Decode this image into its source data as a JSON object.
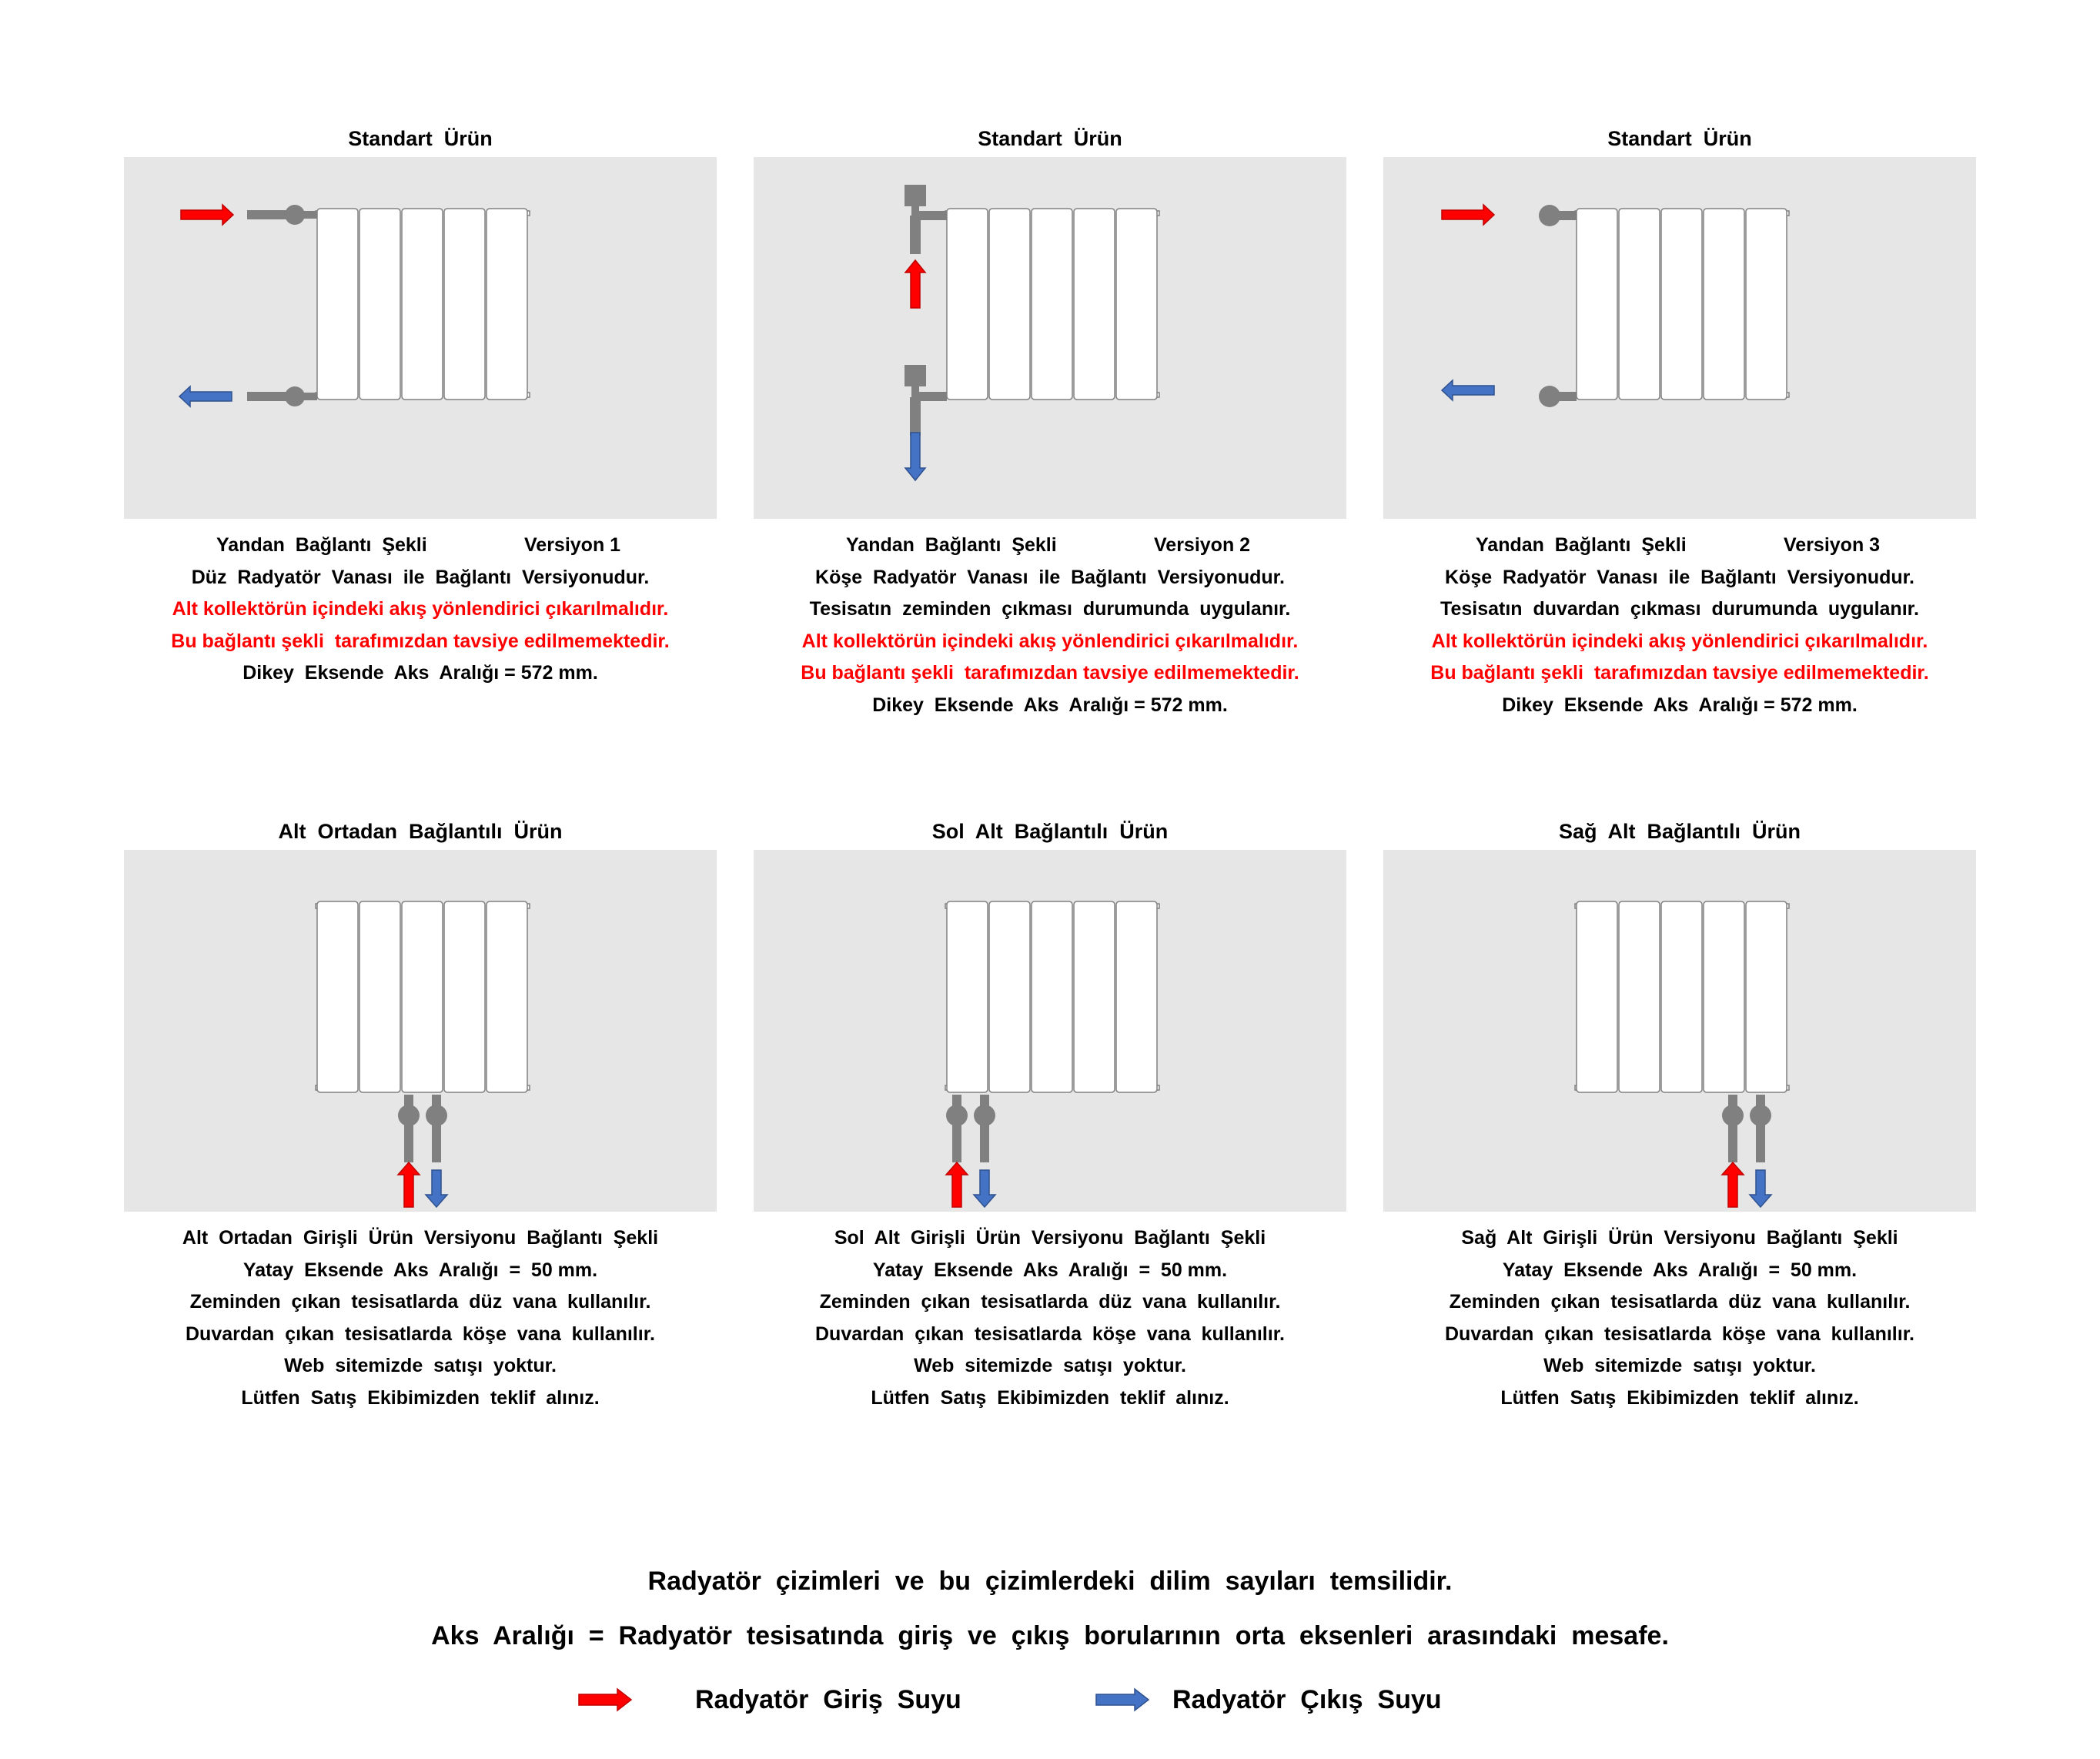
{
  "colors": {
    "inlet": "#ff0000",
    "outlet": "#4472c4",
    "pipe": "#808080",
    "panel_bg": "#e6e6e6",
    "radiator": "#ffffff",
    "warning_text": "#ff0000"
  },
  "panels": [
    {
      "title": "Standart  Ürün",
      "version_left": "Yandan  Bağlantı  Şekli",
      "version_right": "Versiyon 1",
      "lines": [
        {
          "text": "Düz  Radyatör  Vanası  ile  Bağlantı  Versiyonudur.",
          "warning": false
        },
        {
          "text": "Alt kollektörün içindeki akış yönlendirici çıkarılmalıdır.",
          "warning": true
        },
        {
          "text": "Bu bağlantı şekli  tarafımızdan tavsiye edilmemektedir.",
          "warning": true
        },
        {
          "text": "Dikey  Eksende  Aks  Aralığı = 572 mm.",
          "warning": false
        }
      ]
    },
    {
      "title": "Standart  Ürün",
      "version_left": "Yandan  Bağlantı  Şekli",
      "version_right": "Versiyon 2",
      "lines": [
        {
          "text": "Köşe  Radyatör  Vanası  ile  Bağlantı  Versiyonudur.",
          "warning": false
        },
        {
          "text": "Tesisatın  zeminden  çıkması  durumunda  uygulanır.",
          "warning": false
        },
        {
          "text": "Alt kollektörün içindeki akış yönlendirici çıkarılmalıdır.",
          "warning": true
        },
        {
          "text": "Bu bağlantı şekli  tarafımızdan tavsiye edilmemektedir.",
          "warning": true
        },
        {
          "text": "Dikey  Eksende  Aks  Aralığı = 572 mm.",
          "warning": false
        }
      ]
    },
    {
      "title": "Standart  Ürün",
      "version_left": "Yandan  Bağlantı  Şekli",
      "version_right": "Versiyon 3",
      "lines": [
        {
          "text": "Köşe  Radyatör  Vanası  ile  Bağlantı  Versiyonudur.",
          "warning": false
        },
        {
          "text": "Tesisatın  duvardan  çıkması  durumunda  uygulanır.",
          "warning": false
        },
        {
          "text": "Alt kollektörün içindeki akış yönlendirici çıkarılmalıdır.",
          "warning": true
        },
        {
          "text": "Bu bağlantı şekli  tarafımızdan tavsiye edilmemektedir.",
          "warning": true
        },
        {
          "text": "Dikey  Eksende  Aks  Aralığı = 572 mm.",
          "warning": false
        }
      ]
    },
    {
      "title": "Alt  Ortadan  Bağlantılı  Ürün",
      "lines": [
        {
          "text": "Alt  Ortadan  Girişli  Ürün  Versiyonu  Bağlantı  Şekli",
          "warning": false
        },
        {
          "text": "Yatay  Eksende  Aks  Aralığı  =  50 mm.",
          "warning": false
        },
        {
          "text": "Zeminden  çıkan  tesisatlarda  düz  vana  kullanılır.",
          "warning": false
        },
        {
          "text": "Duvardan  çıkan  tesisatlarda  köşe  vana  kullanılır.",
          "warning": false
        },
        {
          "text": "Web  sitemizde  satışı  yoktur.",
          "warning": false
        },
        {
          "text": "Lütfen  Satış  Ekibimizden  teklif  alınız.",
          "warning": false
        }
      ]
    },
    {
      "title": "Sol  Alt  Bağlantılı  Ürün",
      "lines": [
        {
          "text": "Sol  Alt  Girişli  Ürün  Versiyonu  Bağlantı  Şekli",
          "warning": false
        },
        {
          "text": "Yatay  Eksende  Aks  Aralığı  =  50 mm.",
          "warning": false
        },
        {
          "text": "Zeminden  çıkan  tesisatlarda  düz  vana  kullanılır.",
          "warning": false
        },
        {
          "text": "Duvardan  çıkan  tesisatlarda  köşe  vana  kullanılır.",
          "warning": false
        },
        {
          "text": "Web  sitemizde  satışı  yoktur.",
          "warning": false
        },
        {
          "text": "Lütfen  Satış  Ekibimizden  teklif  alınız.",
          "warning": false
        }
      ]
    },
    {
      "title": "Sağ  Alt  Bağlantılı  Ürün",
      "lines": [
        {
          "text": "Sağ  Alt  Girişli  Ürün  Versiyonu  Bağlantı  Şekli",
          "warning": false
        },
        {
          "text": "Yatay  Eksende  Aks  Aralığı  =  50 mm.",
          "warning": false
        },
        {
          "text": "Zeminden  çıkan  tesisatlarda  düz  vana  kullanılır.",
          "warning": false
        },
        {
          "text": "Duvardan  çıkan  tesisatlarda  köşe  vana  kullanılır.",
          "warning": false
        },
        {
          "text": "Web  sitemizde  satışı  yoktur.",
          "warning": false
        },
        {
          "text": "Lütfen  Satış  Ekibimizden  teklif  alınız.",
          "warning": false
        }
      ]
    }
  ],
  "footer": {
    "note1": "Radyatör  çizimleri  ve  bu  çizimlerdeki  dilim  sayıları  temsilidir.",
    "note2": "Aks  Aralığı  =  Radyatör  tesisatında  giriş  ve  çıkış  borularının  orta  eksenleri  arasındaki  mesafe.",
    "legend_inlet": "Radyatör  Giriş  Suyu",
    "legend_outlet": "Radyatör  Çıkış  Suyu"
  }
}
